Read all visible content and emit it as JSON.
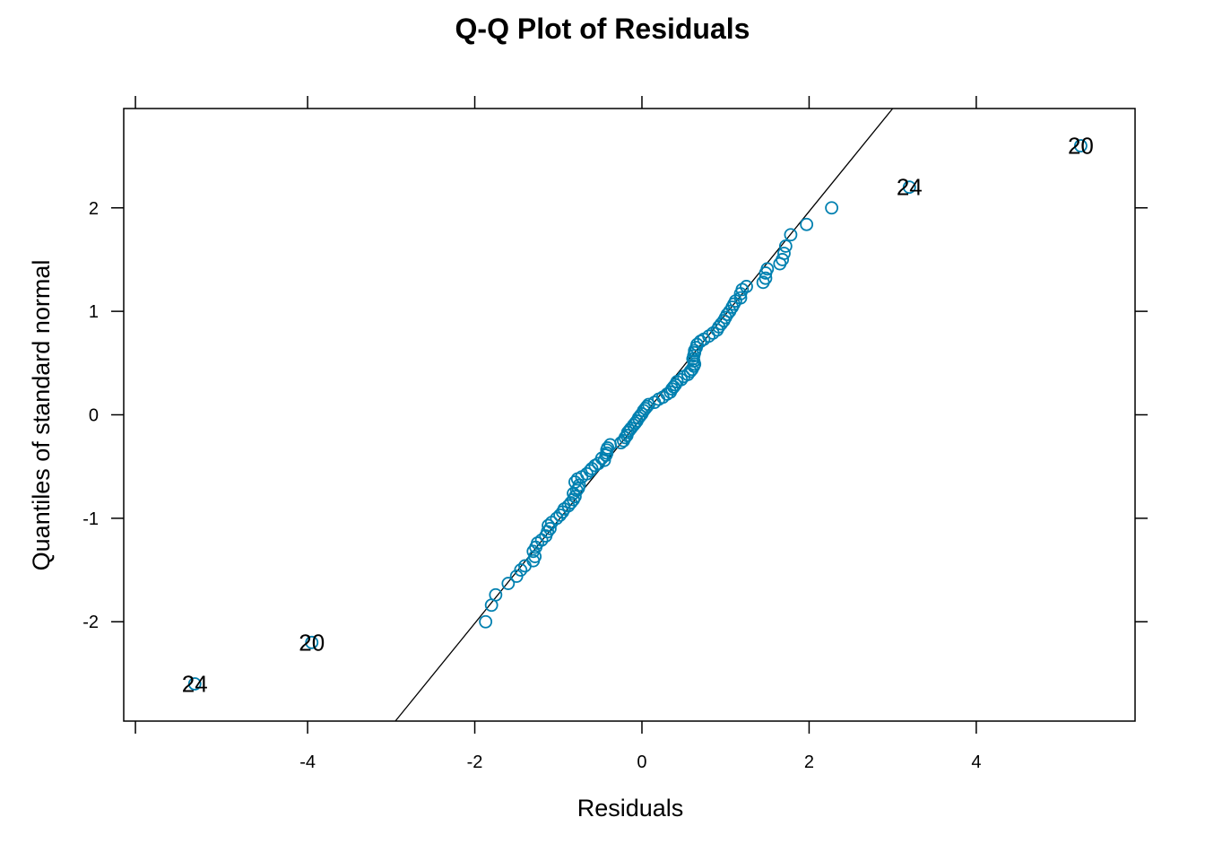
{
  "chart_data": {
    "type": "scatter",
    "title": "Q-Q Plot of Residuals",
    "xlabel": "Residuals",
    "ylabel": "Quantiles of standard normal",
    "xlim": [
      -6.2,
      5.9
    ],
    "ylim": [
      -2.96,
      2.96
    ],
    "x_ticks": [
      -4,
      -2,
      0,
      2,
      4
    ],
    "y_ticks": [
      -2,
      -1,
      0,
      1,
      2
    ],
    "grid": false,
    "legend": "none",
    "point_color": "#0080b0",
    "line_color": "#000000",
    "reference_line": {
      "x1": -2.95,
      "y1": -2.96,
      "x2": 3.0,
      "y2": 2.96
    },
    "labeled_points": [
      {
        "x": -5.35,
        "y": -2.6,
        "label": "24"
      },
      {
        "x": -3.95,
        "y": -2.2,
        "label": "20"
      },
      {
        "x": 3.2,
        "y": 2.2,
        "label": "24"
      },
      {
        "x": 5.25,
        "y": 2.6,
        "label": "20"
      }
    ],
    "points": [
      [
        -1.87,
        -2.0
      ],
      [
        -1.8,
        -1.84
      ],
      [
        -1.75,
        -1.74
      ],
      [
        -1.6,
        -1.63
      ],
      [
        -1.5,
        -1.56
      ],
      [
        -1.45,
        -1.5
      ],
      [
        -1.4,
        -1.46
      ],
      [
        -1.3,
        -1.41
      ],
      [
        -1.28,
        -1.37
      ],
      [
        -1.3,
        -1.32
      ],
      [
        -1.27,
        -1.28
      ],
      [
        -1.25,
        -1.24
      ],
      [
        -1.2,
        -1.21
      ],
      [
        -1.15,
        -1.17
      ],
      [
        -1.13,
        -1.13
      ],
      [
        -1.1,
        -1.1
      ],
      [
        -1.12,
        -1.07
      ],
      [
        -1.08,
        -1.04
      ],
      [
        -1.02,
        -1.0
      ],
      [
        -0.98,
        -0.97
      ],
      [
        -0.95,
        -0.94
      ],
      [
        -0.93,
        -0.91
      ],
      [
        -0.88,
        -0.88
      ],
      [
        -0.85,
        -0.85
      ],
      [
        -0.82,
        -0.82
      ],
      [
        -0.8,
        -0.79
      ],
      [
        -0.82,
        -0.76
      ],
      [
        -0.78,
        -0.73
      ],
      [
        -0.76,
        -0.71
      ],
      [
        -0.75,
        -0.68
      ],
      [
        -0.8,
        -0.65
      ],
      [
        -0.77,
        -0.62
      ],
      [
        -0.72,
        -0.6
      ],
      [
        -0.66,
        -0.57
      ],
      [
        -0.62,
        -0.54
      ],
      [
        -0.6,
        -0.52
      ],
      [
        -0.56,
        -0.49
      ],
      [
        -0.52,
        -0.47
      ],
      [
        -0.45,
        -0.44
      ],
      [
        -0.48,
        -0.42
      ],
      [
        -0.43,
        -0.39
      ],
      [
        -0.42,
        -0.37
      ],
      [
        -0.42,
        -0.34
      ],
      [
        -0.41,
        -0.32
      ],
      [
        -0.38,
        -0.29
      ],
      [
        -0.25,
        -0.27
      ],
      [
        -0.22,
        -0.25
      ],
      [
        -0.2,
        -0.22
      ],
      [
        -0.18,
        -0.2
      ],
      [
        -0.17,
        -0.17
      ],
      [
        -0.15,
        -0.15
      ],
      [
        -0.13,
        -0.13
      ],
      [
        -0.1,
        -0.1
      ],
      [
        -0.08,
        -0.08
      ],
      [
        -0.06,
        -0.06
      ],
      [
        -0.04,
        -0.03
      ],
      [
        -0.02,
        -0.01
      ],
      [
        0.0,
        0.01
      ],
      [
        0.02,
        0.04
      ],
      [
        0.04,
        0.06
      ],
      [
        0.06,
        0.08
      ],
      [
        0.08,
        0.1
      ],
      [
        0.15,
        0.12
      ],
      [
        0.2,
        0.15
      ],
      [
        0.25,
        0.17
      ],
      [
        0.3,
        0.2
      ],
      [
        0.34,
        0.22
      ],
      [
        0.36,
        0.25
      ],
      [
        0.38,
        0.27
      ],
      [
        0.4,
        0.29
      ],
      [
        0.42,
        0.32
      ],
      [
        0.47,
        0.34
      ],
      [
        0.5,
        0.37
      ],
      [
        0.55,
        0.39
      ],
      [
        0.58,
        0.42
      ],
      [
        0.6,
        0.44
      ],
      [
        0.62,
        0.47
      ],
      [
        0.63,
        0.49
      ],
      [
        0.62,
        0.52
      ],
      [
        0.61,
        0.54
      ],
      [
        0.62,
        0.57
      ],
      [
        0.63,
        0.6
      ],
      [
        0.63,
        0.62
      ],
      [
        0.65,
        0.65
      ],
      [
        0.66,
        0.68
      ],
      [
        0.7,
        0.71
      ],
      [
        0.74,
        0.73
      ],
      [
        0.8,
        0.76
      ],
      [
        0.85,
        0.79
      ],
      [
        0.9,
        0.82
      ],
      [
        0.92,
        0.85
      ],
      [
        0.95,
        0.88
      ],
      [
        0.98,
        0.91
      ],
      [
        1.0,
        0.94
      ],
      [
        1.02,
        0.97
      ],
      [
        1.05,
        1.0
      ],
      [
        1.08,
        1.04
      ],
      [
        1.1,
        1.07
      ],
      [
        1.12,
        1.1
      ],
      [
        1.18,
        1.13
      ],
      [
        1.18,
        1.17
      ],
      [
        1.2,
        1.21
      ],
      [
        1.25,
        1.24
      ],
      [
        1.45,
        1.28
      ],
      [
        1.48,
        1.32
      ],
      [
        1.48,
        1.37
      ],
      [
        1.5,
        1.41
      ],
      [
        1.65,
        1.46
      ],
      [
        1.68,
        1.5
      ],
      [
        1.7,
        1.56
      ],
      [
        1.72,
        1.63
      ],
      [
        1.78,
        1.74
      ],
      [
        1.97,
        1.84
      ],
      [
        2.27,
        2.0
      ]
    ]
  }
}
